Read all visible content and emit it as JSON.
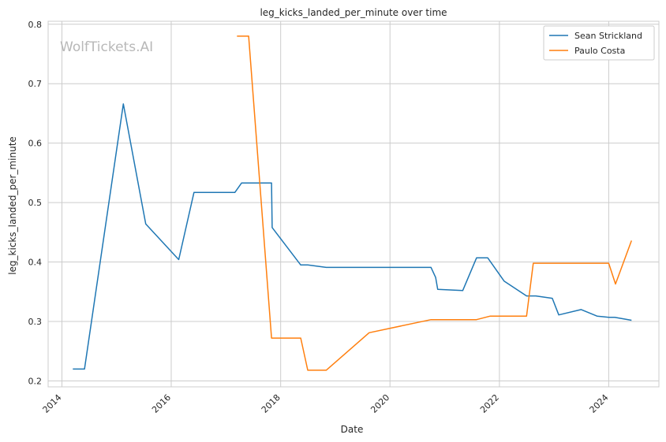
{
  "chart_data": {
    "type": "line",
    "title": "leg_kicks_landed_per_minute over time",
    "xlabel": "Date",
    "ylabel": "leg_kicks_landed_per_minute",
    "watermark": "WolfTickets.AI",
    "x_ticks": [
      "2014",
      "2016",
      "2018",
      "2020",
      "2022",
      "2024"
    ],
    "y_ticks": [
      "0.2",
      "0.3",
      "0.4",
      "0.5",
      "0.6",
      "0.7",
      "0.8"
    ],
    "xlim": [
      "2013-10-01",
      "2024-12-01"
    ],
    "ylim": [
      0.19,
      0.805
    ],
    "grid": true,
    "legend_position": "top-right",
    "series": [
      {
        "name": "Sean Strickland",
        "color": "#1f77b4",
        "points": [
          [
            "2014-03-15",
            0.22
          ],
          [
            "2014-06-01",
            0.22
          ],
          [
            "2015-02-15",
            0.666
          ],
          [
            "2015-07-15",
            0.464
          ],
          [
            "2016-02-20",
            0.404
          ],
          [
            "2016-06-01",
            0.517
          ],
          [
            "2017-03-01",
            0.517
          ],
          [
            "2017-04-15",
            0.533
          ],
          [
            "2017-11-01",
            0.533
          ],
          [
            "2017-11-05",
            0.458
          ],
          [
            "2018-05-15",
            0.395
          ],
          [
            "2018-07-01",
            0.395
          ],
          [
            "2018-11-01",
            0.391
          ],
          [
            "2020-10-01",
            0.391
          ],
          [
            "2020-11-01",
            0.374
          ],
          [
            "2020-11-15",
            0.354
          ],
          [
            "2021-05-01",
            0.352
          ],
          [
            "2021-08-01",
            0.407
          ],
          [
            "2021-10-15",
            0.407
          ],
          [
            "2022-02-01",
            0.368
          ],
          [
            "2022-07-01",
            0.343
          ],
          [
            "2022-09-01",
            0.343
          ],
          [
            "2022-12-20",
            0.339
          ],
          [
            "2023-02-01",
            0.311
          ],
          [
            "2023-07-01",
            0.32
          ],
          [
            "2023-10-15",
            0.309
          ],
          [
            "2024-01-01",
            0.307
          ],
          [
            "2024-02-10",
            0.307
          ],
          [
            "2024-06-01",
            0.302
          ]
        ]
      },
      {
        "name": "Paulo Costa",
        "color": "#ff7f0e",
        "points": [
          [
            "2017-03-15",
            0.78
          ],
          [
            "2017-06-01",
            0.78
          ],
          [
            "2017-11-01",
            0.272
          ],
          [
            "2018-05-15",
            0.272
          ],
          [
            "2018-07-01",
            0.218
          ],
          [
            "2018-11-01",
            0.218
          ],
          [
            "2019-08-15",
            0.281
          ],
          [
            "2020-10-01",
            0.303
          ],
          [
            "2021-08-01",
            0.303
          ],
          [
            "2021-11-01",
            0.309
          ],
          [
            "2022-07-01",
            0.309
          ],
          [
            "2022-08-15",
            0.398
          ],
          [
            "2024-01-01",
            0.398
          ],
          [
            "2024-02-15",
            0.363
          ],
          [
            "2024-06-01",
            0.436
          ]
        ]
      }
    ]
  }
}
